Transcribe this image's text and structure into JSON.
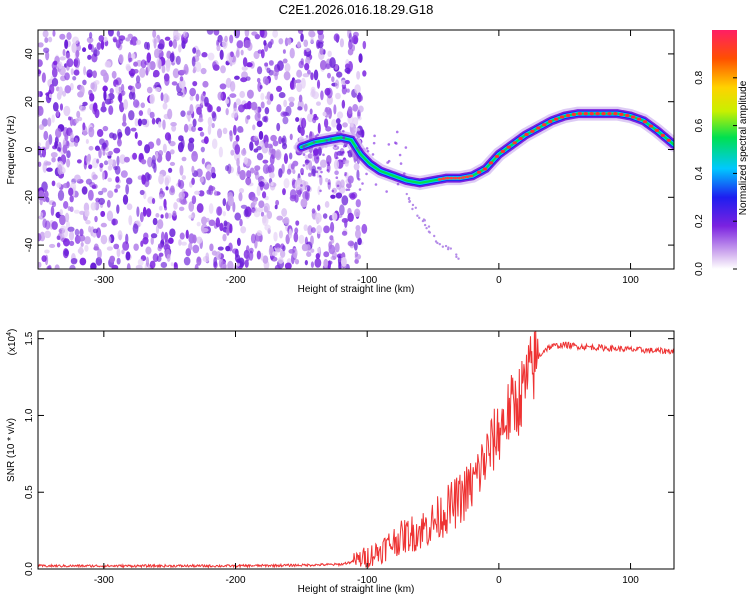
{
  "chart_data": [
    {
      "type": "heatmap",
      "title": "C2E1.2026.016.18.29.G18",
      "xlabel": "Height of straight line (km)",
      "ylabel": "Frequency (Hz)",
      "xlim": [
        -350,
        133
      ],
      "ylim": [
        -50,
        50
      ],
      "xticks": [
        -300,
        -200,
        -100,
        0,
        100
      ],
      "xtick_labels": [
        "-300",
        "-200",
        "-100",
        "0",
        "100"
      ],
      "yticks": [
        -40,
        -20,
        0,
        20,
        40
      ],
      "ytick_labels": [
        "-40",
        "-20",
        "0",
        "20",
        "40"
      ],
      "colorbar": {
        "label": "Normalized spectral amplitude",
        "ticks": [
          0.0,
          0.2,
          0.4,
          0.6,
          0.8
        ],
        "tick_labels": [
          "0.0",
          "0.2",
          "0.4",
          "0.6",
          "0.8"
        ],
        "colormap": [
          "#ffffff",
          "#d6b6f0",
          "#7b22e0",
          "#1e1ef0",
          "#00c8ff",
          "#00e050",
          "#c8f000",
          "#ffd200",
          "#ff5000",
          "#ff1e64"
        ]
      },
      "noise_region": {
        "x_range": [
          -350,
          -110
        ],
        "y_range": [
          -50,
          50
        ]
      },
      "ridge": {
        "x": [
          -150,
          -140,
          -130,
          -120,
          -112,
          -105,
          -98,
          -90,
          -80,
          -70,
          -60,
          -50,
          -40,
          -30,
          -20,
          -10,
          0,
          10,
          20,
          30,
          40,
          50,
          60,
          70,
          80,
          90,
          100,
          110,
          120,
          133
        ],
        "y": [
          1,
          3,
          4,
          5,
          4,
          -2,
          -6,
          -9,
          -11,
          -13,
          -14,
          -13,
          -12,
          -12,
          -11,
          -8,
          -2,
          2,
          6,
          9,
          12,
          14,
          15,
          15,
          15,
          15,
          14,
          12,
          8,
          2
        ]
      },
      "secondary_track": {
        "x": [
          -70,
          -60,
          -50,
          -40,
          -30
        ],
        "y": [
          -20,
          -28,
          -36,
          -41,
          -46
        ]
      }
    },
    {
      "type": "line",
      "title": "",
      "xlabel": "Height of straight line (km)",
      "ylabel": "SNR (10 * v/v)",
      "exponent_label": "(x10",
      "exponent_sup": "4",
      "exponent_close": ")",
      "xlim": [
        -350,
        133
      ],
      "ylim": [
        0,
        1.55
      ],
      "xticks": [
        -300,
        -200,
        -100,
        0,
        100
      ],
      "xtick_labels": [
        "-300",
        "-200",
        "-100",
        "0",
        "100"
      ],
      "yticks": [
        0,
        0.5,
        1.0,
        1.5
      ],
      "ytick_labels": [
        "0.0",
        "0.5",
        "1.0",
        "1.5"
      ],
      "color": "#ee3333",
      "x": [
        -350,
        -300,
        -250,
        -200,
        -150,
        -120,
        -110,
        -100,
        -90,
        -80,
        -70,
        -60,
        -50,
        -40,
        -30,
        -20,
        -10,
        0,
        5,
        10,
        15,
        20,
        25,
        30,
        35,
        40,
        50,
        60,
        80,
        100,
        120,
        133
      ],
      "y": [
        0.02,
        0.02,
        0.02,
        0.02,
        0.025,
        0.03,
        0.05,
        0.08,
        0.12,
        0.18,
        0.22,
        0.25,
        0.3,
        0.38,
        0.45,
        0.55,
        0.72,
        0.9,
        0.98,
        1.05,
        1.1,
        1.2,
        1.3,
        1.38,
        1.43,
        1.45,
        1.46,
        1.45,
        1.44,
        1.43,
        1.42,
        1.42
      ]
    }
  ]
}
